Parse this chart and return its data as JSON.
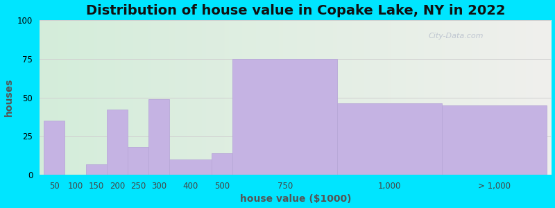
{
  "title": "Distribution of house value in Copake Lake, NY in 2022",
  "xlabel": "house value ($1000)",
  "ylabel": "houses",
  "bar_labels": [
    "50",
    "100",
    "150",
    "200",
    "250",
    "300",
    "400",
    "500",
    "750",
    "1,000",
    "> 1,000"
  ],
  "bar_values": [
    35,
    0,
    7,
    42,
    18,
    49,
    10,
    14,
    75,
    46,
    45
  ],
  "bar_centers": [
    0.5,
    1.5,
    2.5,
    3.5,
    4.5,
    5.5,
    7.0,
    8.5,
    11.5,
    16.5,
    21.5
  ],
  "bar_widths": [
    1.0,
    1.0,
    1.0,
    1.0,
    1.0,
    1.0,
    2.0,
    1.0,
    5.0,
    5.0,
    5.0
  ],
  "bar_lefts": [
    0.0,
    1.0,
    2.0,
    3.0,
    4.0,
    5.0,
    6.0,
    8.0,
    9.0,
    14.0,
    19.0
  ],
  "tick_positions": [
    0.5,
    1.5,
    2.5,
    3.5,
    4.5,
    5.5,
    7.0,
    8.5,
    11.5,
    16.5,
    21.5
  ],
  "bar_color": "#c5b3e3",
  "bar_edge_color": "#b8a8d8",
  "ylim": [
    0,
    100
  ],
  "yticks": [
    0,
    25,
    50,
    75,
    100
  ],
  "xlim": [
    -0.2,
    24.2
  ],
  "bg_outer": "#00e5ff",
  "bg_left_color": "#d4edda",
  "bg_right_color": "#f2f2ee",
  "grid_color": "#d0d0d0",
  "title_fontsize": 14,
  "axis_label_fontsize": 10,
  "tick_fontsize": 8.5,
  "watermark": "City-Data.com"
}
